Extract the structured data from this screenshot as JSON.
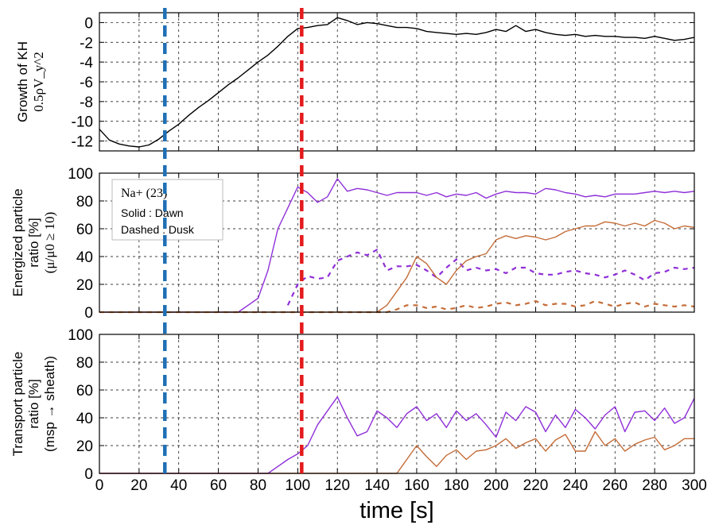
{
  "chart_data": {
    "type": "line",
    "xlabel": "time [s]",
    "xlim": [
      0,
      300
    ],
    "xticks": [
      0,
      20,
      40,
      60,
      80,
      100,
      120,
      140,
      160,
      180,
      200,
      220,
      240,
      260,
      280,
      300
    ],
    "grid": true,
    "vlines": [
      {
        "x": 33,
        "color": "#1f6fb4",
        "style": "dashed"
      },
      {
        "x": 102,
        "color": "#e41a1c",
        "style": "dashed"
      }
    ],
    "panels": [
      {
        "ylabel_lines": [
          "Growth of KH",
          "0.5ρV_y^2"
        ],
        "ylabel_text": "Growth of KH",
        "ylabel_math": "0.5ρVy2",
        "ylim": [
          -13,
          1
        ],
        "yticks": [
          0,
          -2,
          -4,
          -6,
          -8,
          -10,
          -12
        ],
        "series": [
          {
            "color": "#000000",
            "style": "solid",
            "x": [
              0,
              5,
              10,
              15,
              20,
              25,
              30,
              35,
              40,
              45,
              50,
              55,
              60,
              65,
              70,
              75,
              80,
              85,
              90,
              95,
              100,
              105,
              110,
              115,
              120,
              125,
              130,
              135,
              140,
              145,
              150,
              155,
              160,
              165,
              170,
              175,
              180,
              185,
              190,
              195,
              200,
              205,
              210,
              215,
              220,
              225,
              230,
              235,
              240,
              245,
              250,
              255,
              260,
              265,
              270,
              275,
              280,
              285,
              290,
              295,
              300
            ],
            "y": [
              -10.8,
              -11.9,
              -12.3,
              -12.5,
              -12.6,
              -12.4,
              -11.8,
              -11,
              -10.3,
              -9.4,
              -8.6,
              -7.9,
              -7.1,
              -6.3,
              -5.6,
              -4.8,
              -4,
              -3.3,
              -2.4,
              -1.4,
              -0.6,
              -0.5,
              -0.3,
              -0.2,
              0.5,
              0.2,
              -0.2,
              0,
              -0.1,
              -0.3,
              -0.5,
              -0.5,
              -0.6,
              -0.9,
              -1,
              -1.1,
              -1.2,
              -1.1,
              -1.2,
              -1,
              -0.7,
              -0.9,
              -0.3,
              -0.9,
              -0.7,
              -1,
              -1.2,
              -1.3,
              -1.2,
              -1.4,
              -1.3,
              -1.4,
              -1.4,
              -1.5,
              -1.5,
              -1.6,
              -1.4,
              -1.6,
              -1.8,
              -1.7,
              -1.5
            ]
          }
        ]
      },
      {
        "ylabel_lines": [
          "Energized particle",
          "ratio [%]",
          "(μ/μ0 ≥ 10)"
        ],
        "ylabel_text": [
          "Energized particle",
          "ratio [%]"
        ],
        "ylabel_math": "(μ/μ0 ≥ 10)",
        "ylim": [
          0,
          100
        ],
        "yticks": [
          0,
          20,
          40,
          60,
          80,
          100
        ],
        "legend": {
          "title": "Na+ (23)",
          "lines": [
            "Solid : Dawn",
            "Dashed : Dusk"
          ],
          "placement": "top-left"
        },
        "series": [
          {
            "name": "Dawn",
            "color": "#8f2fd8",
            "style": "solid",
            "x": [
              0,
              70,
              75,
              80,
              85,
              90,
              95,
              100,
              105,
              110,
              115,
              120,
              125,
              130,
              135,
              140,
              145,
              150,
              155,
              160,
              165,
              170,
              175,
              180,
              185,
              190,
              195,
              200,
              205,
              210,
              215,
              220,
              225,
              230,
              235,
              240,
              245,
              250,
              255,
              260,
              265,
              270,
              275,
              280,
              285,
              290,
              295,
              300
            ],
            "y": [
              0,
              0,
              5,
              10,
              30,
              60,
              75,
              90,
              86,
              79,
              83,
              96,
              87,
              89,
              88,
              86,
              84,
              86,
              86,
              86,
              84,
              86,
              83,
              85,
              84,
              86,
              82,
              85,
              87,
              86,
              86,
              85,
              89,
              88,
              86,
              85,
              83,
              84,
              83,
              85,
              85,
              85,
              86,
              87,
              86,
              87,
              86,
              87
            ]
          },
          {
            "name": "Dusk",
            "color": "#8f2fd8",
            "style": "dashed",
            "x": [
              95,
              100,
              105,
              110,
              115,
              120,
              125,
              130,
              135,
              140,
              145,
              150,
              155,
              160,
              165,
              170,
              175,
              180,
              185,
              190,
              195,
              200,
              205,
              210,
              215,
              220,
              225,
              230,
              235,
              240,
              245,
              250,
              255,
              260,
              265,
              270,
              275,
              280,
              285,
              290,
              295,
              300
            ],
            "y": [
              5,
              20,
              26,
              24,
              25,
              37,
              40,
              43,
              41,
              45,
              30,
              33,
              33,
              34,
              30,
              25,
              32,
              38,
              30,
              32,
              30,
              31,
              28,
              32,
              32,
              28,
              27,
              27,
              29,
              30,
              28,
              27,
              25,
              27,
              30,
              27,
              23,
              28,
              29,
              32,
              31,
              32
            ]
          },
          {
            "name": "Dawn",
            "color": "#c46c38",
            "style": "solid",
            "x": [
              0,
              140,
              145,
              150,
              155,
              160,
              165,
              170,
              175,
              180,
              185,
              190,
              195,
              200,
              205,
              210,
              215,
              220,
              225,
              230,
              235,
              240,
              245,
              250,
              255,
              260,
              265,
              270,
              275,
              280,
              285,
              290,
              295,
              300
            ],
            "y": [
              0,
              0,
              5,
              15,
              25,
              40,
              35,
              25,
              20,
              30,
              37,
              40,
              42,
              52,
              55,
              53,
              55,
              54,
              52,
              54,
              58,
              60,
              62,
              62,
              65,
              64,
              62,
              64,
              62,
              66,
              64,
              60,
              62,
              61
            ]
          },
          {
            "name": "Dusk",
            "color": "#c46c38",
            "style": "dashed",
            "x": [
              0,
              145,
              150,
              155,
              160,
              165,
              170,
              175,
              180,
              185,
              190,
              195,
              200,
              205,
              210,
              215,
              220,
              225,
              230,
              235,
              240,
              245,
              250,
              255,
              260,
              265,
              270,
              275,
              280,
              285,
              290,
              295,
              300
            ],
            "y": [
              0,
              0,
              2,
              5,
              5,
              3,
              4,
              2,
              3,
              5,
              3,
              4,
              6,
              7,
              5,
              6,
              8,
              5,
              6,
              6,
              4,
              5,
              8,
              6,
              4,
              6,
              7,
              4,
              6,
              5,
              4,
              5,
              4
            ]
          }
        ]
      },
      {
        "ylabel_lines": [
          "Transport particle",
          "ratio [%]",
          "(msp → sheath)"
        ],
        "ylabel_text": [
          "Transport particle",
          "ratio [%]",
          "(msp → sheath)"
        ],
        "ylim": [
          0,
          100
        ],
        "yticks": [
          0,
          20,
          40,
          60,
          80,
          100
        ],
        "series": [
          {
            "color": "#8f2fd8",
            "style": "solid",
            "x": [
              0,
              85,
              90,
              95,
              100,
              105,
              110,
              115,
              120,
              125,
              130,
              135,
              140,
              145,
              150,
              155,
              160,
              165,
              170,
              175,
              180,
              185,
              190,
              195,
              200,
              205,
              210,
              215,
              220,
              225,
              230,
              235,
              240,
              245,
              250,
              255,
              260,
              265,
              270,
              275,
              280,
              285,
              290,
              295,
              300
            ],
            "y": [
              0,
              0,
              5,
              10,
              14,
              20,
              35,
              45,
              55,
              40,
              27,
              30,
              45,
              40,
              33,
              43,
              48,
              38,
              43,
              33,
              45,
              38,
              43,
              35,
              26,
              44,
              38,
              48,
              44,
              30,
              42,
              33,
              46,
              40,
              32,
              42,
              48,
              30,
              44,
              45,
              38,
              47,
              36,
              40,
              54
            ]
          },
          {
            "color": "#c46c38",
            "style": "solid",
            "x": [
              0,
              150,
              155,
              160,
              165,
              170,
              175,
              180,
              185,
              190,
              195,
              200,
              205,
              210,
              215,
              220,
              225,
              230,
              235,
              240,
              245,
              250,
              255,
              260,
              265,
              270,
              275,
              280,
              285,
              290,
              295,
              300
            ],
            "y": [
              0,
              0,
              10,
              20,
              12,
              5,
              13,
              17,
              10,
              16,
              17,
              20,
              25,
              18,
              22,
              25,
              16,
              24,
              28,
              16,
              16,
              30,
              20,
              25,
              16,
              21,
              24,
              26,
              17,
              20,
              25,
              25
            ]
          }
        ]
      }
    ]
  }
}
